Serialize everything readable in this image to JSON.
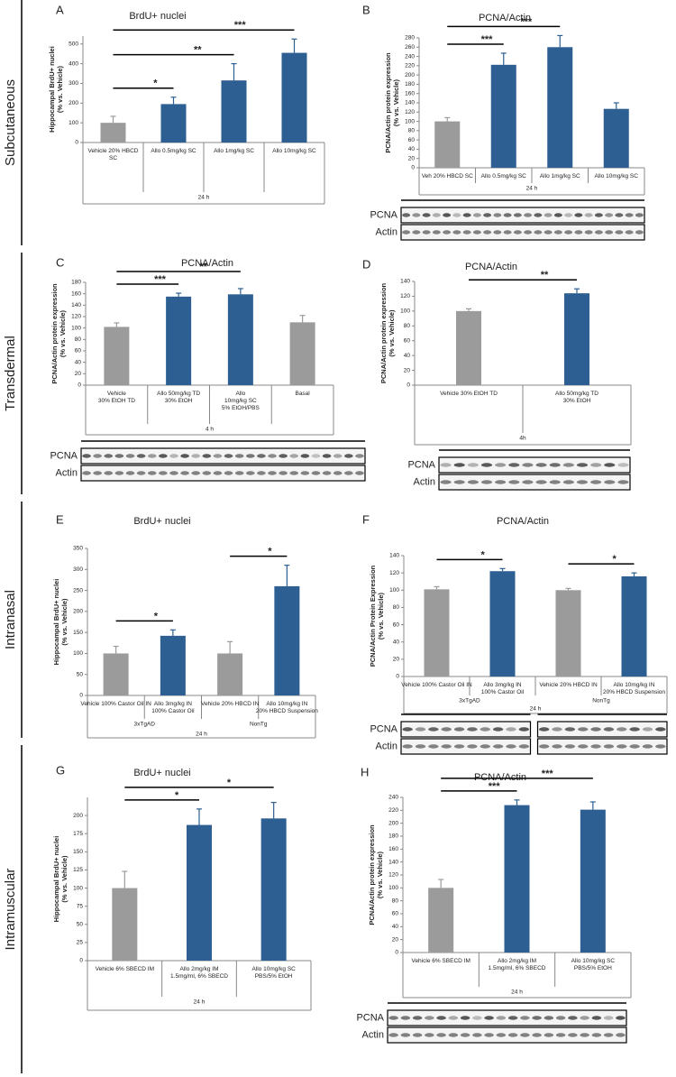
{
  "sections": [
    "Subcutaneous",
    "Transdermal",
    "Intranasal",
    "Intramuscular"
  ],
  "chart_data": [
    {
      "type": "bar",
      "panel": "A",
      "title": "BrdU+ nuclei",
      "ylabel": [
        "Hippocampal BrdU+ nuclei",
        "(% vs. Vehicle)"
      ],
      "categories": [
        [
          "Vehicle 20% HBCD",
          "SC"
        ],
        [
          "Allo 0.5mg/kg SC"
        ],
        [
          "Allo 1mg/kg SC"
        ],
        [
          "Allo 10mg/kg SC"
        ]
      ],
      "values": [
        100,
        195,
        315,
        455
      ],
      "errors": [
        33,
        35,
        85,
        70
      ],
      "colors": [
        "#9b9b9b",
        "#2d5f93",
        "#2d5f93",
        "#2d5f93"
      ],
      "ylim": [
        0,
        540
      ],
      "yticks": [
        0,
        100,
        200,
        300,
        400,
        500
      ],
      "x_label": "24 h",
      "comparisons": [
        {
          "from": 0,
          "to": 1,
          "label": "*"
        },
        {
          "from": 0,
          "to": 2,
          "label": "**"
        },
        {
          "from": 0,
          "to": 3,
          "label": "***"
        }
      ]
    },
    {
      "type": "bar",
      "panel": "B",
      "title": "PCNA/Actin",
      "ylabel": [
        "PCNA/Actin protein expression",
        "(% vs. Vehicle)"
      ],
      "categories": [
        [
          "Veh 20% HBCD SC"
        ],
        [
          "Allo 0.5mg/kg SC"
        ],
        [
          "Allo 1mg/kg SC"
        ],
        [
          "Allo 10mg/kg SC"
        ]
      ],
      "values": [
        100,
        222,
        260,
        127
      ],
      "errors": [
        8,
        25,
        25,
        13
      ],
      "colors": [
        "#9b9b9b",
        "#2d5f93",
        "#2d5f93",
        "#2d5f93"
      ],
      "ylim": [
        0,
        280
      ],
      "yticks": [
        0,
        20,
        40,
        60,
        80,
        100,
        120,
        140,
        160,
        180,
        200,
        220,
        240,
        260,
        280
      ],
      "x_label": "24 h",
      "comparisons": [
        {
          "from": 0,
          "to": 1,
          "label": "***"
        },
        {
          "from": 0,
          "to": 2,
          "label": "***"
        }
      ],
      "blot_labels": [
        "PCNA",
        "Actin"
      ]
    },
    {
      "type": "bar",
      "panel": "C",
      "title": "PCNA/Actin",
      "ylabel": [
        "PCNA/Actin protein expression",
        "(% vs. Vehicle)"
      ],
      "categories": [
        [
          "Vehicle",
          "30% EtOH TD"
        ],
        [
          "Allo 50mg/kg TD",
          "30% EtOH"
        ],
        [
          "Allo",
          "10mg/kg SC",
          "5% EtOH/PBS"
        ],
        [
          "Basal"
        ]
      ],
      "values": [
        102,
        155,
        159,
        110
      ],
      "errors": [
        7,
        6,
        10,
        12
      ],
      "colors": [
        "#9b9b9b",
        "#2d5f93",
        "#2d5f93",
        "#9b9b9b"
      ],
      "ylim": [
        0,
        180
      ],
      "yticks": [
        0,
        20,
        40,
        60,
        80,
        100,
        120,
        140,
        160,
        180
      ],
      "x_label": "4 h",
      "comparisons": [
        {
          "from": 0,
          "to": 1,
          "label": "***"
        },
        {
          "from": 0,
          "to": 2,
          "label": "**"
        }
      ],
      "blot_labels": [
        "PCNA",
        "Actin"
      ]
    },
    {
      "type": "bar",
      "panel": "D",
      "title": "PCNA/Actin",
      "ylabel": [
        "PCNA/Actin protein expression",
        "(% vs. Vehicle)"
      ],
      "categories": [
        [
          "Vehicle 30% EtOH TD"
        ],
        [
          "Allo 50mg/kg TD",
          "30% EtOH"
        ]
      ],
      "values": [
        100,
        124
      ],
      "errors": [
        3,
        6
      ],
      "colors": [
        "#9b9b9b",
        "#2d5f93"
      ],
      "ylim": [
        0,
        140
      ],
      "yticks": [
        0,
        20,
        40,
        60,
        80,
        100,
        120,
        140
      ],
      "x_label": "4h",
      "comparisons": [
        {
          "from": 0,
          "to": 1,
          "label": "**"
        }
      ],
      "blot_labels": [
        "PCNA",
        "Actin"
      ]
    },
    {
      "type": "bar",
      "panel": "E",
      "title": "BrdU+ nuclei",
      "ylabel": [
        "Hippocampal BrdU+ nuclei",
        "(% vs. Vehicle)"
      ],
      "categories": [
        [
          "Vehicle 100% Castor Oil IN"
        ],
        [
          "Allo 3mg/kg IN",
          "100% Castor Oil"
        ],
        [
          "Vehicle  20% HBCD IN"
        ],
        [
          "Allo 10mg/kg IN",
          "20% HBCD Suspension"
        ]
      ],
      "values": [
        100,
        142,
        100,
        260
      ],
      "errors": [
        17,
        14,
        28,
        50
      ],
      "colors": [
        "#9b9b9b",
        "#2d5f93",
        "#9b9b9b",
        "#2d5f93"
      ],
      "ylim": [
        0,
        350
      ],
      "yticks": [
        0,
        50,
        100,
        150,
        200,
        250,
        300,
        350
      ],
      "x_label": "24 h",
      "groups": [
        {
          "label": "3xTgAD",
          "from": 0,
          "to": 1
        },
        {
          "label": "NonTg",
          "from": 2,
          "to": 3
        }
      ],
      "comparisons": [
        {
          "from": 0,
          "to": 1,
          "label": "*"
        },
        {
          "from": 2,
          "to": 3,
          "label": "*"
        }
      ]
    },
    {
      "type": "bar",
      "panel": "F",
      "title": "PCNA/Actin",
      "ylabel": [
        "PCNA/Actin Protein Expression",
        "(% vs. Vehicle)"
      ],
      "categories": [
        [
          "Vehicle 100% Castor Oil IN"
        ],
        [
          "Allo 3mg/kg IN",
          "100% Castor Oil"
        ],
        [
          "Vehicle  20% HBCD IN"
        ],
        [
          "Allo 10mg/kg IN",
          "20% HBCD Suspension"
        ]
      ],
      "values": [
        101,
        122,
        100,
        116
      ],
      "errors": [
        3,
        3,
        2,
        4
      ],
      "colors": [
        "#9b9b9b",
        "#2d5f93",
        "#9b9b9b",
        "#2d5f93"
      ],
      "ylim": [
        0,
        140
      ],
      "yticks": [
        0,
        20,
        40,
        60,
        80,
        100,
        120,
        140
      ],
      "x_label": "24 h",
      "groups": [
        {
          "label": "3xTgAD",
          "from": 0,
          "to": 1
        },
        {
          "label": "NonTg",
          "from": 2,
          "to": 3
        }
      ],
      "comparisons": [
        {
          "from": 0,
          "to": 1,
          "label": "*"
        },
        {
          "from": 2,
          "to": 3,
          "label": "*"
        }
      ],
      "blot_labels": [
        "PCNA",
        "Actin"
      ]
    },
    {
      "type": "bar",
      "panel": "G",
      "title": "BrdU+ nuclei",
      "ylabel": [
        "Hippocampal BrdU+ nuclei",
        "(% vs. Vehicle)"
      ],
      "categories": [
        [
          "Vehicle 6% SBECD IM"
        ],
        [
          "Allo 2mg/kg IM",
          "1.5mg/ml, 6% SBECD"
        ],
        [
          "Allo 10mg/kg SC",
          "PBS/5% EtOH"
        ]
      ],
      "values": [
        100,
        187,
        196
      ],
      "errors": [
        23,
        22,
        22
      ],
      "colors": [
        "#9b9b9b",
        "#2d5f93",
        "#2d5f93"
      ],
      "ylim": [
        0,
        225
      ],
      "yticks": [
        0,
        25,
        50,
        75,
        100,
        125,
        150,
        175,
        200
      ],
      "x_label": "24 h",
      "comparisons": [
        {
          "from": 0,
          "to": 1,
          "label": "*"
        },
        {
          "from": 0,
          "to": 2,
          "label": "*"
        }
      ]
    },
    {
      "type": "bar",
      "panel": "H",
      "title": "PCNA/Actin",
      "ylabel": [
        "PCNA/Actin protein expression",
        "(% vs. Vehicle)"
      ],
      "categories": [
        [
          "Vehicle 6% SBECD IM"
        ],
        [
          "Allo 2mg/kg IM",
          "1.5mg/ml, 6% SBECD"
        ],
        [
          "Allo 10mg/kg SC",
          "PBS/5% EtOH"
        ]
      ],
      "values": [
        100,
        228,
        221
      ],
      "errors": [
        13,
        8,
        12
      ],
      "colors": [
        "#9b9b9b",
        "#2d5f93",
        "#2d5f93"
      ],
      "ylim": [
        0,
        240
      ],
      "yticks": [
        0,
        20,
        40,
        60,
        80,
        100,
        120,
        140,
        160,
        180,
        200,
        220,
        240
      ],
      "x_label": "24 h",
      "comparisons": [
        {
          "from": 0,
          "to": 1,
          "label": "***"
        },
        {
          "from": 0,
          "to": 2,
          "label": "***"
        }
      ],
      "blot_labels": [
        "PCNA",
        "Actin"
      ]
    }
  ]
}
